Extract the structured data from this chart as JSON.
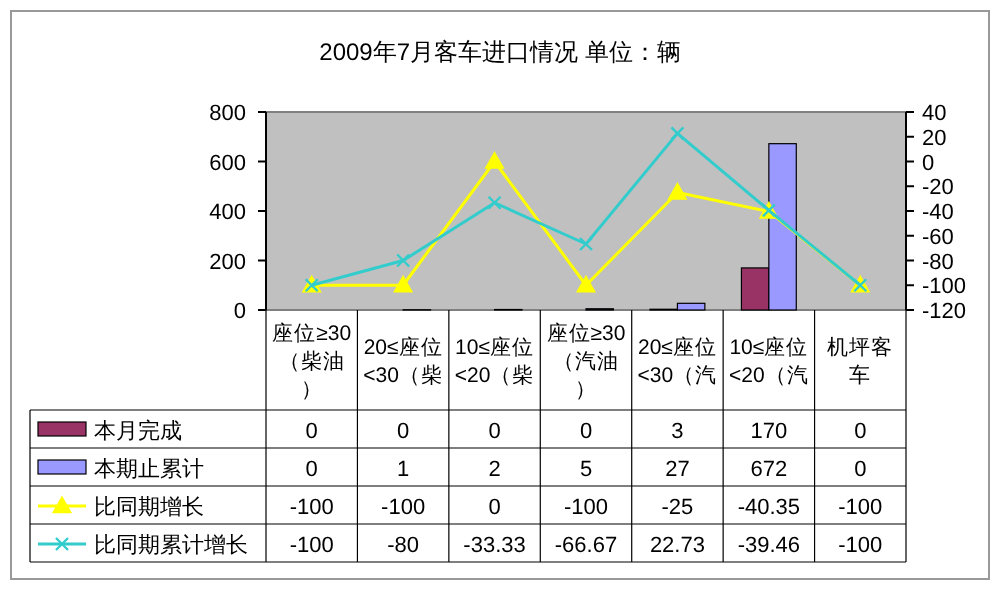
{
  "chart_data": {
    "type": "bar",
    "title": "2009年7月客车进口情况 单位：辆",
    "categories": [
      "座位≥30（柴油）",
      "20≤座位<30（柴",
      "10≤座位<20（柴",
      "座位≥30（汽油）",
      "20≤座位<30（汽",
      "10≤座位<20（汽",
      "机坪客车"
    ],
    "series": [
      {
        "name": "本月完成",
        "color": "#993366",
        "values": [
          0,
          0,
          0,
          0,
          3,
          170,
          0
        ]
      },
      {
        "name": "本期止累计",
        "color": "#9999ff",
        "values": [
          0,
          1,
          2,
          5,
          27,
          672,
          0
        ]
      },
      {
        "name": "比同期增长",
        "type": "line",
        "axis": "y2",
        "marker": "triangle",
        "color": "#ffff00",
        "values": [
          -100,
          -100,
          0,
          -100,
          -25,
          -40.35,
          -100
        ]
      },
      {
        "name": "比同期累计增长",
        "type": "line",
        "axis": "y2",
        "marker": "cross",
        "color": "#33cccc",
        "values": [
          -100,
          -80,
          -33.33,
          -66.67,
          22.73,
          -39.46,
          -100
        ]
      }
    ],
    "ylim": [
      0,
      800
    ],
    "yticks": [
      0,
      200,
      400,
      600,
      800
    ],
    "y2lim": [
      -120,
      40
    ],
    "y2ticks": [
      -120,
      -100,
      -80,
      -60,
      -40,
      -20,
      0,
      20,
      40
    ],
    "data_labels": true,
    "legend": "bottom"
  }
}
